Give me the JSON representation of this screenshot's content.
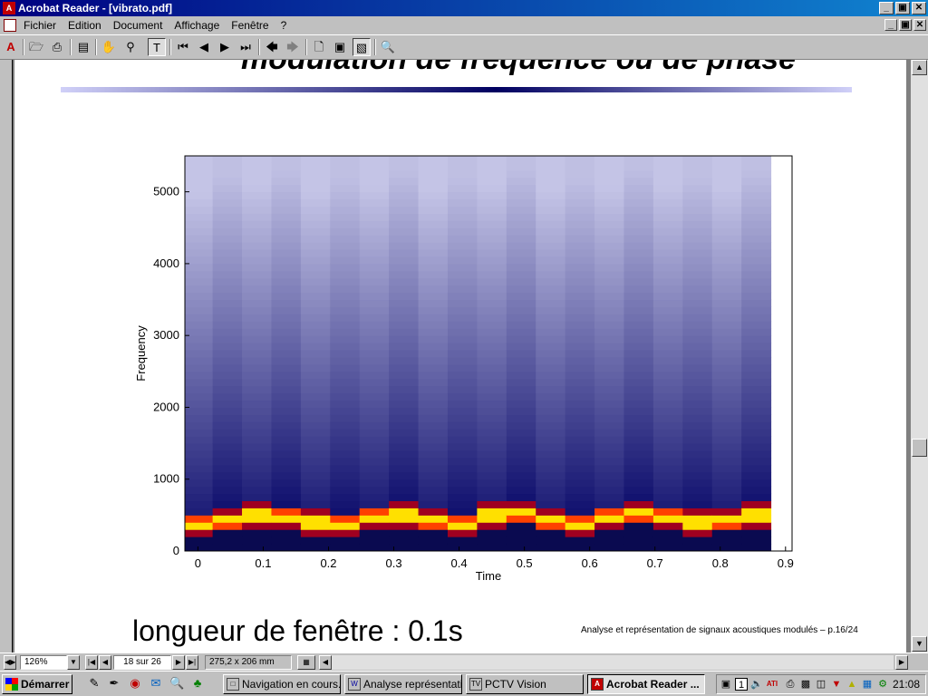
{
  "window": {
    "title": "Acrobat Reader - [vibrato.pdf]",
    "app_icon": "acrobat-icon",
    "controls": [
      "_",
      "▣",
      "✕"
    ]
  },
  "menu": {
    "items": [
      "Fichier",
      "Edition",
      "Document",
      "Affichage",
      "Fenêtre",
      "?"
    ],
    "doc_controls": [
      "_",
      "▣",
      "✕"
    ]
  },
  "toolbar": {
    "icons": [
      "acrobat-logo-icon",
      "open-folder-icon",
      "print-icon",
      "page-only-icon",
      "hand-tool-icon",
      "zoom-tool-icon",
      "text-select-icon",
      "first-page-icon",
      "previous-page-icon",
      "next-page-icon",
      "last-page-icon",
      "go-back-icon",
      "go-forward-icon",
      "actual-size-icon",
      "fit-page-icon",
      "fit-width-icon",
      "find-icon"
    ]
  },
  "slide": {
    "title": "modulation de fréquence ou de phase",
    "caption": "longueur de fenêtre : 0.1s",
    "footer": "Analyse et représentation de signaux acoustiques modulés – p.16/24"
  },
  "chart_data": {
    "type": "heatmap",
    "title": "",
    "xlabel": "Time",
    "ylabel": "Frequency",
    "x_ticks": [
      "0",
      "0.1",
      "0.2",
      "0.3",
      "0.4",
      "0.5",
      "0.6",
      "0.7",
      "0.8",
      "0.9"
    ],
    "y_ticks": [
      "0",
      "1000",
      "2000",
      "3000",
      "4000",
      "5000"
    ],
    "xlim": [
      -0.02,
      0.91
    ],
    "ylim": [
      0,
      5500
    ],
    "colormap": "blue-white low, dark navy, red-yellow peak",
    "peak_frequency_by_frame": [
      380,
      420,
      500,
      480,
      400,
      380,
      480,
      500,
      420,
      380,
      500,
      520,
      420,
      360,
      460,
      520,
      480,
      400,
      440,
      500
    ],
    "frame_times": [
      0.0,
      0.045,
      0.09,
      0.135,
      0.18,
      0.225,
      0.27,
      0.315,
      0.36,
      0.405,
      0.45,
      0.495,
      0.54,
      0.585,
      0.63,
      0.675,
      0.72,
      0.765,
      0.81,
      0.855
    ]
  },
  "statusbar": {
    "zoom": "126%",
    "page": "18 sur 26",
    "size": "275,2 x 206 mm"
  },
  "taskbar": {
    "start_label": "Démarrer",
    "quick_launch": [
      "edit-icon",
      "pen-icon",
      "browser-icon",
      "outlook-icon",
      "search-icon",
      "clover-icon"
    ],
    "tasks": [
      {
        "label": "Navigation en cours...",
        "icon": "folder-icon",
        "active": false
      },
      {
        "label": "Analyse représentati...",
        "icon": "word-icon",
        "active": false
      },
      {
        "label": "PCTV Vision",
        "icon": "tv-icon",
        "active": false
      },
      {
        "label": "Acrobat Reader ...",
        "icon": "acrobat-icon",
        "active": true
      }
    ],
    "clock": "21:08"
  }
}
